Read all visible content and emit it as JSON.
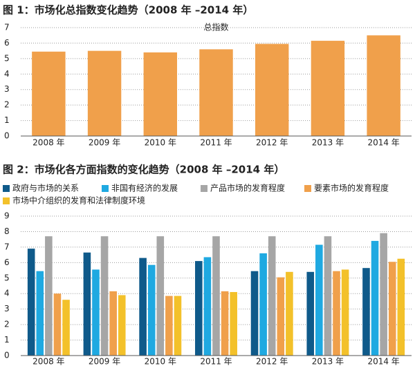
{
  "chart_data": [
    {
      "type": "bar",
      "title": "图 1：市场化总指数变化趋势（2008 年 –2014 年）",
      "categories": [
        "2008 年",
        "2009 年",
        "2010 年",
        "2011 年",
        "2012 年",
        "2013 年",
        "2014 年"
      ],
      "series": [
        {
          "name": "总指数",
          "color": "#f0a04b",
          "values": [
            5.45,
            5.5,
            5.4,
            5.6,
            5.95,
            6.15,
            6.5
          ]
        }
      ],
      "ylim": [
        0,
        7
      ],
      "yticks": [
        0,
        1,
        2,
        3,
        4,
        5,
        6,
        7
      ],
      "grid": true
    },
    {
      "type": "bar",
      "title": "图 2：市场化各方面指数的变化趋势（2008 年 –2014 年）",
      "categories": [
        "2008 年",
        "2009 年",
        "2010 年",
        "2011 年",
        "2012 年",
        "2013 年",
        "2014 年"
      ],
      "series": [
        {
          "name": "政府与市场的关系",
          "color": "#0f5a8a",
          "values": [
            6.9,
            6.65,
            6.3,
            6.1,
            5.45,
            5.4,
            5.65
          ]
        },
        {
          "name": "非国有经济的发展",
          "color": "#1fa9e1",
          "values": [
            5.45,
            5.55,
            5.85,
            6.35,
            6.6,
            7.15,
            7.4
          ]
        },
        {
          "name": "产品市场的发育程度",
          "color": "#a6a6a6",
          "values": [
            7.7,
            7.7,
            7.7,
            7.7,
            7.7,
            7.7,
            7.9
          ]
        },
        {
          "name": "要素市场的发育程度",
          "color": "#f0a04b",
          "values": [
            4.0,
            4.15,
            3.85,
            4.15,
            5.05,
            5.45,
            6.05
          ]
        },
        {
          "name": "市场中介组织的发育和法律制度环境",
          "color": "#f3c12a",
          "values": [
            3.6,
            3.9,
            3.85,
            4.1,
            5.4,
            5.55,
            6.25
          ]
        }
      ],
      "ylim": [
        0,
        9
      ],
      "yticks": [
        0,
        1,
        2,
        3,
        4,
        5,
        6,
        7,
        8,
        9
      ],
      "grid": true
    }
  ]
}
